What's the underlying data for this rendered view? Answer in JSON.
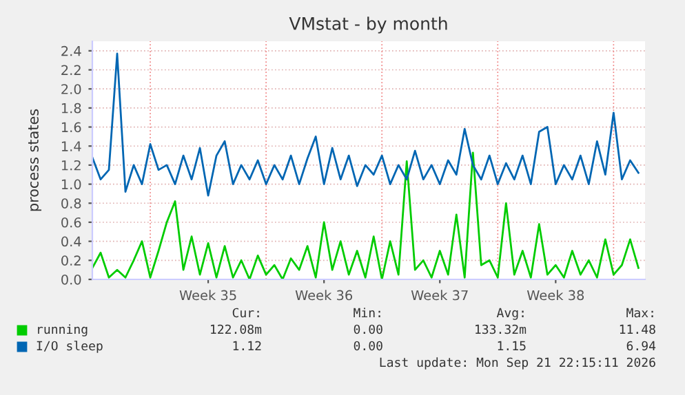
{
  "chart_data": {
    "type": "line",
    "title": "VMstat - by month",
    "ylabel": "process states",
    "categories": [
      null,
      null,
      null,
      null,
      null,
      null,
      null,
      null,
      null,
      null,
      null,
      null,
      null,
      null,
      "Week 35",
      null,
      null,
      null,
      null,
      null,
      null,
      null,
      null,
      null,
      null,
      null,
      null,
      null,
      "Week 36",
      null,
      null,
      null,
      null,
      null,
      null,
      null,
      null,
      null,
      null,
      null,
      null,
      null,
      "Week 37",
      null,
      null,
      null,
      null,
      null,
      null,
      null,
      null,
      null,
      null,
      null,
      null,
      null,
      "Week 38",
      null,
      null,
      null,
      null,
      null,
      null,
      null,
      null,
      null,
      null
    ],
    "series": [
      {
        "name": "running",
        "color": "#00cc00",
        "values": [
          0.12,
          0.28,
          0.02,
          0.1,
          0.02,
          0.2,
          0.4,
          0.02,
          0.3,
          0.6,
          0.82,
          0.1,
          0.45,
          0.05,
          0.38,
          0.02,
          0.35,
          0.02,
          0.2,
          0.0,
          0.25,
          0.05,
          0.15,
          0.0,
          0.22,
          0.1,
          0.35,
          0.02,
          0.6,
          0.1,
          0.4,
          0.05,
          0.3,
          0.02,
          0.45,
          0.0,
          0.4,
          0.05,
          1.24,
          0.1,
          0.2,
          0.02,
          0.3,
          0.05,
          0.68,
          0.02,
          1.33,
          0.15,
          0.2,
          0.02,
          0.8,
          0.05,
          0.3,
          0.02,
          0.58,
          0.05,
          0.15,
          0.02,
          0.3,
          0.05,
          0.2,
          0.02,
          0.42,
          0.05,
          0.15,
          0.42,
          0.12
        ]
      },
      {
        "name": "I/O sleep",
        "color": "#0066b3",
        "values": [
          1.28,
          1.05,
          1.15,
          2.37,
          0.92,
          1.2,
          1.0,
          1.42,
          1.15,
          1.2,
          1.0,
          1.3,
          1.05,
          1.38,
          0.88,
          1.3,
          1.45,
          1.0,
          1.2,
          1.05,
          1.25,
          1.0,
          1.2,
          1.05,
          1.3,
          1.0,
          1.27,
          1.5,
          1.0,
          1.38,
          1.05,
          1.3,
          0.98,
          1.2,
          1.1,
          1.3,
          1.0,
          1.2,
          1.05,
          1.35,
          1.05,
          1.2,
          1.0,
          1.25,
          1.1,
          1.58,
          1.2,
          1.05,
          1.3,
          1.0,
          1.22,
          1.05,
          1.3,
          1.0,
          1.55,
          1.6,
          1.0,
          1.2,
          1.05,
          1.3,
          1.0,
          1.45,
          1.1,
          1.75,
          1.05,
          1.25,
          1.12
        ]
      }
    ],
    "ylim": [
      0,
      2.5
    ],
    "yticks": [
      {
        "value": 0,
        "label": "0.0"
      },
      0.2,
      0.4,
      0.6,
      0.8,
      {
        "value": 1,
        "label": "1.0"
      },
      1.2,
      1.4,
      1.6,
      1.8,
      {
        "value": 2,
        "label": "2.0"
      },
      2.2,
      2.4
    ],
    "grid": true,
    "legend": "bottom",
    "marker": "none",
    "line_style": "solid",
    "annotations": [
      "Cur:",
      "Min:",
      "Avg:",
      "Max:",
      "122.08m",
      "0.00",
      "133.32m",
      "11.48",
      "1.12",
      "0.00",
      "1.15",
      "6.94",
      "Last update: Mon Sep 21 22:15:11 2026"
    ]
  }
}
